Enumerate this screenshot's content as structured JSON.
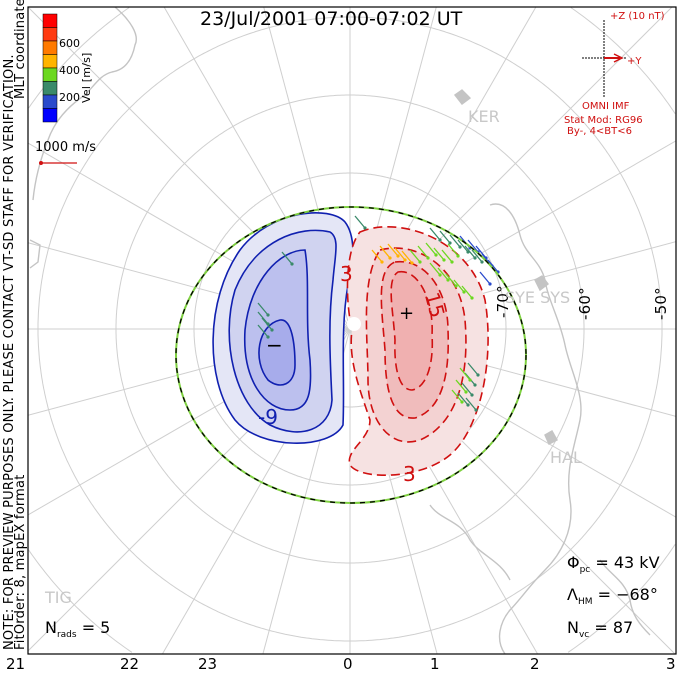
{
  "title": "23/Jul/2001 07:00-07:02 UT",
  "notes": {
    "preview": "NOTE: FOR PREVIEW PURPOSES ONLY. PLEASE CONTACT VT-SD STAFF FOR VERIFICATION.",
    "fit_order": "FitOrder: 8, mapEX format",
    "coordinates": "MLT coordinates"
  },
  "colorbar": {
    "label": "Vel [m/s]",
    "ticks": [
      "600",
      "400",
      "200"
    ],
    "colors": [
      "#ff0000",
      "#ff3a10",
      "#ff7a00",
      "#ffb400",
      "#6cd820",
      "#3a8a6a",
      "#2a4acc",
      "#0000ff"
    ]
  },
  "scale_vector": {
    "label": "1000 m/s",
    "color": "#d01010"
  },
  "imf": {
    "z_label": "+Z (10 nT)",
    "y_label": "+Y",
    "source": "OMNI IMF",
    "model": "Stat Mod: RG96",
    "condition": "By-, 4<BT<6"
  },
  "latitude_labels": [
    "-70°",
    "-60°",
    "-50°"
  ],
  "stations": [
    "KER",
    "SYE SYS",
    "HAL",
    "TIG"
  ],
  "contour_labels": {
    "neg": "-9",
    "pos_small": "3",
    "pos_big": "15",
    "pos_bottom": "3",
    "min_marker": "−",
    "max_marker": "+"
  },
  "stats": {
    "phi_symbol": "Φ",
    "phi_sub": "pc",
    "phi_value": "= 43 kV",
    "lambda_symbol": "Λ",
    "lambda_sub": "HM",
    "lambda_value": "= −68°",
    "nvc_symbol": "N",
    "nvc_sub": "vc",
    "nvc_value": "= 87",
    "nrads_symbol": "N",
    "nrads_sub": "rads",
    "nrads_value": "= 5"
  },
  "mlt_ticks": [
    "21",
    "22",
    "23",
    "0",
    "1",
    "2",
    "3"
  ]
}
